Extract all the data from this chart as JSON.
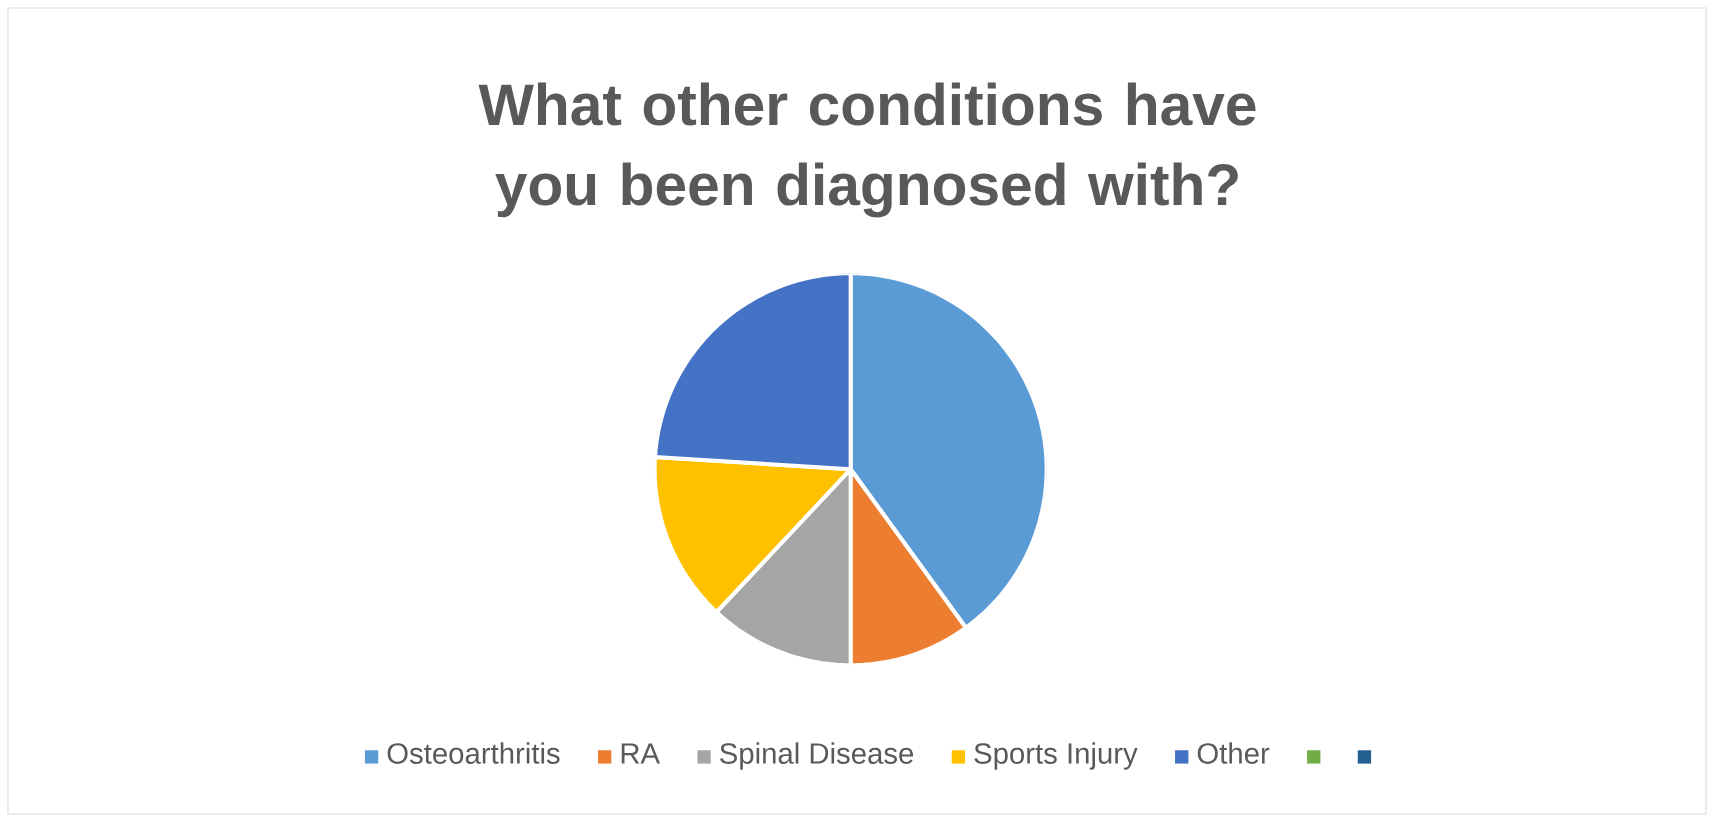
{
  "chart_data": {
    "type": "pie",
    "title": "What other conditions have you been diagnosed with?",
    "categories": [
      "Osteoarthritis",
      "RA",
      "Spinal Disease",
      "Sports Injury",
      "Other",
      null,
      null
    ],
    "values": [
      40,
      10,
      12,
      14,
      24,
      0,
      0
    ],
    "colors": [
      "#5b9bd5",
      "#ed7d31",
      "#a5a5a5",
      "#ffc000",
      "#4472c4",
      "#70ad47",
      "#255e91"
    ],
    "legend": "bottom"
  }
}
